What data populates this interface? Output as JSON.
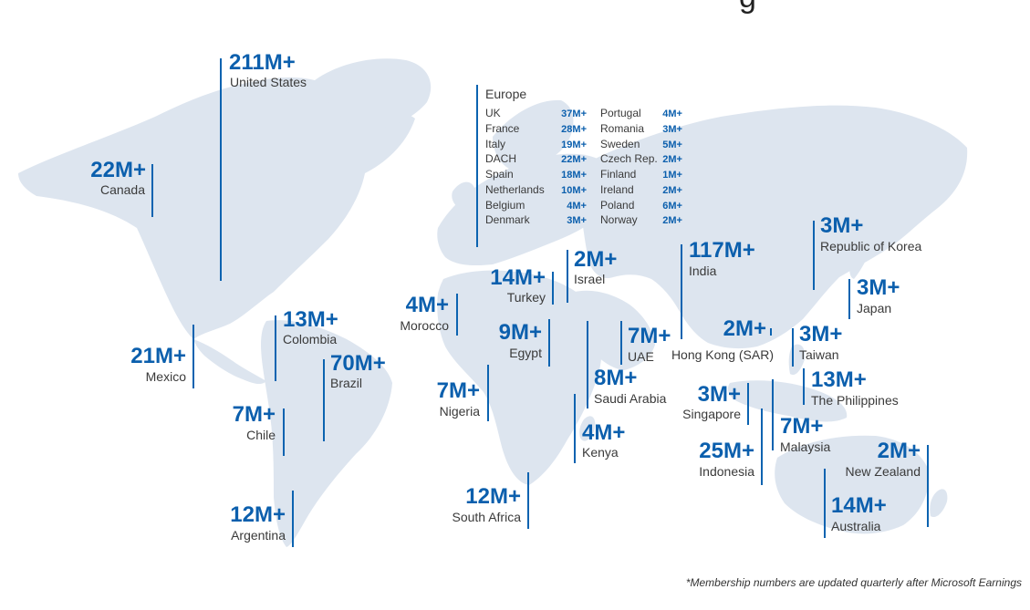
{
  "title_fragment": "g",
  "footnote": "*Membership numbers are updated quarterly after Microsoft Earnings",
  "colors": {
    "accent": "#0b5fad",
    "land": "#dde5ef",
    "text": "#3a3a3a"
  },
  "countries": [
    {
      "id": "united-states",
      "value": "211M+",
      "label": "United States"
    },
    {
      "id": "canada",
      "value": "22M+",
      "label": "Canada"
    },
    {
      "id": "mexico",
      "value": "21M+",
      "label": "Mexico"
    },
    {
      "id": "colombia",
      "value": "13M+",
      "label": "Colombia"
    },
    {
      "id": "brazil",
      "value": "70M+",
      "label": "Brazil"
    },
    {
      "id": "chile",
      "value": "7M+",
      "label": "Chile"
    },
    {
      "id": "argentina",
      "value": "12M+",
      "label": "Argentina"
    },
    {
      "id": "morocco",
      "value": "4M+",
      "label": "Morocco"
    },
    {
      "id": "turkey",
      "value": "14M+",
      "label": "Turkey"
    },
    {
      "id": "israel",
      "value": "2M+",
      "label": "Israel"
    },
    {
      "id": "egypt",
      "value": "9M+",
      "label": "Egypt"
    },
    {
      "id": "nigeria",
      "value": "7M+",
      "label": "Nigeria"
    },
    {
      "id": "uae",
      "value": "7M+",
      "label": "UAE"
    },
    {
      "id": "saudi-arabia",
      "value": "8M+",
      "label": "Saudi Arabia"
    },
    {
      "id": "kenya",
      "value": "4M+",
      "label": "Kenya"
    },
    {
      "id": "south-africa",
      "value": "12M+",
      "label": "South Africa"
    },
    {
      "id": "india",
      "value": "117M+",
      "label": "India"
    },
    {
      "id": "hong-kong",
      "value": "2M+",
      "label": "Hong Kong (SAR)"
    },
    {
      "id": "republic-of-korea",
      "value": "3M+",
      "label": "Republic of Korea"
    },
    {
      "id": "japan",
      "value": "3M+",
      "label": "Japan"
    },
    {
      "id": "taiwan",
      "value": "3M+",
      "label": "Taiwan"
    },
    {
      "id": "philippines",
      "value": "13M+",
      "label": "The Philippines"
    },
    {
      "id": "singapore",
      "value": "3M+",
      "label": "Singapore"
    },
    {
      "id": "malaysia",
      "value": "7M+",
      "label": "Malaysia"
    },
    {
      "id": "indonesia",
      "value": "25M+",
      "label": "Indonesia"
    },
    {
      "id": "new-zealand",
      "value": "2M+",
      "label": "New Zealand"
    },
    {
      "id": "australia",
      "value": "14M+",
      "label": "Australia"
    }
  ],
  "europe": {
    "title": "Europe",
    "col1": [
      {
        "name": "UK",
        "value": "37M+"
      },
      {
        "name": "France",
        "value": "28M+"
      },
      {
        "name": "Italy",
        "value": "19M+"
      },
      {
        "name": "DACH",
        "value": "22M+"
      },
      {
        "name": "Spain",
        "value": "18M+"
      },
      {
        "name": "Netherlands",
        "value": "10M+"
      },
      {
        "name": "Belgium",
        "value": "4M+"
      },
      {
        "name": "Denmark",
        "value": "3M+"
      }
    ],
    "col2": [
      {
        "name": "Portugal",
        "value": "4M+"
      },
      {
        "name": "Romania",
        "value": "3M+"
      },
      {
        "name": "Sweden",
        "value": "5M+"
      },
      {
        "name": "Czech Rep.",
        "value": "2M+"
      },
      {
        "name": "Finland",
        "value": "1M+"
      },
      {
        "name": "Ireland",
        "value": "2M+"
      },
      {
        "name": "Poland",
        "value": "6M+"
      },
      {
        "name": "Norway",
        "value": "2M+"
      }
    ]
  }
}
